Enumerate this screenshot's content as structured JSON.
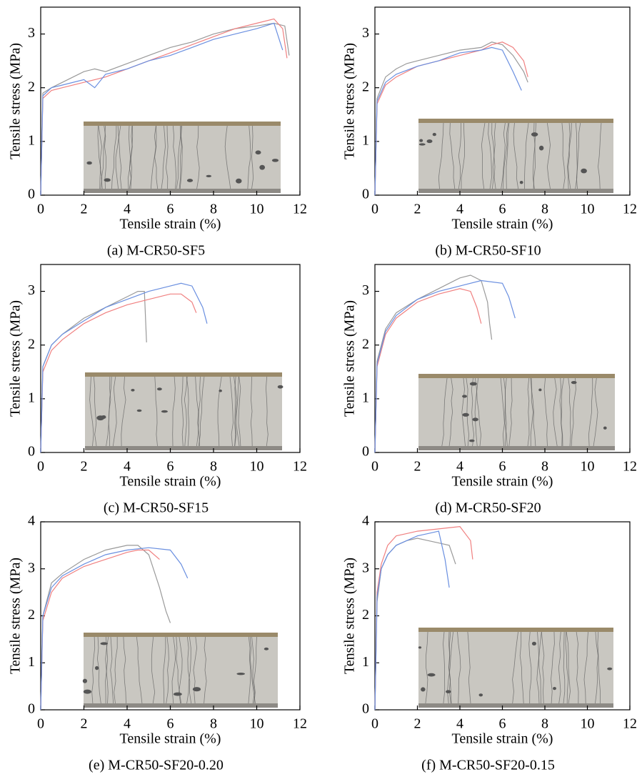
{
  "chart_data": [
    {
      "type": "line",
      "title": "(a) M-CR50-SF5",
      "x_label": "Tensile strain (%)",
      "y_label": "Tensile stress (MPa)",
      "xlim": [
        0,
        12
      ],
      "xticks": [
        0,
        2,
        4,
        6,
        8,
        10,
        12
      ],
      "ylim": [
        0,
        3.5
      ],
      "yticks": [
        0,
        1,
        2,
        3
      ],
      "series": [
        {
          "color": "#999999",
          "x": [
            0,
            0.1,
            0.5,
            1,
            1.5,
            2,
            2.5,
            3,
            4,
            5,
            6,
            7,
            8,
            9,
            10,
            10.8,
            11.3,
            11.5
          ],
          "values": [
            0,
            1.9,
            2.0,
            2.1,
            2.2,
            2.3,
            2.35,
            2.3,
            2.45,
            2.6,
            2.75,
            2.85,
            3.0,
            3.1,
            3.15,
            3.2,
            3.15,
            2.6
          ]
        },
        {
          "color": "#f08080",
          "x": [
            0,
            0.1,
            0.5,
            1,
            2,
            3,
            4,
            5,
            6,
            7,
            8,
            9,
            10,
            10.8,
            11.2,
            11.4
          ],
          "values": [
            0,
            1.8,
            1.95,
            2.0,
            2.1,
            2.2,
            2.35,
            2.5,
            2.65,
            2.8,
            2.95,
            3.1,
            3.2,
            3.28,
            3.1,
            2.55
          ]
        },
        {
          "color": "#6a8fe0",
          "x": [
            0,
            0.1,
            0.5,
            1,
            2,
            2.5,
            3,
            4,
            5,
            6,
            7,
            8,
            9,
            10,
            10.8,
            11.2
          ],
          "values": [
            0,
            1.85,
            2.0,
            2.05,
            2.15,
            2.0,
            2.25,
            2.35,
            2.5,
            2.6,
            2.75,
            2.9,
            3.0,
            3.1,
            3.2,
            2.7
          ]
        }
      ]
    },
    {
      "type": "line",
      "title": "(b) M-CR50-SF10",
      "x_label": "Tensile strain (%)",
      "y_label": "Tensile stress (MPa)",
      "xlim": [
        0,
        12
      ],
      "xticks": [
        0,
        2,
        4,
        6,
        8,
        10,
        12
      ],
      "ylim": [
        0,
        3.5
      ],
      "yticks": [
        0,
        1,
        2,
        3
      ],
      "series": [
        {
          "color": "#999999",
          "x": [
            0,
            0.1,
            0.5,
            1,
            1.5,
            2,
            3,
            4,
            5,
            5.5,
            6,
            6.5,
            7,
            7.2
          ],
          "values": [
            0,
            1.8,
            2.2,
            2.35,
            2.45,
            2.5,
            2.6,
            2.7,
            2.75,
            2.85,
            2.8,
            2.6,
            2.3,
            2.1
          ]
        },
        {
          "color": "#f08080",
          "x": [
            0,
            0.1,
            0.5,
            1,
            2,
            3,
            4,
            5,
            5.5,
            6,
            6.5,
            7,
            7.2
          ],
          "values": [
            0,
            1.7,
            2.05,
            2.2,
            2.4,
            2.5,
            2.6,
            2.7,
            2.8,
            2.85,
            2.75,
            2.5,
            2.2
          ]
        },
        {
          "color": "#6a8fe0",
          "x": [
            0,
            0.1,
            0.5,
            1,
            2,
            3,
            4,
            5,
            5.5,
            6,
            6.5,
            6.9
          ],
          "values": [
            0,
            1.75,
            2.1,
            2.25,
            2.4,
            2.5,
            2.65,
            2.7,
            2.75,
            2.7,
            2.3,
            1.95
          ]
        }
      ]
    },
    {
      "type": "line",
      "title": "(c) M-CR50-SF15",
      "x_label": "Tensile strain (%)",
      "y_label": "Tensile stress (MPa)",
      "xlim": [
        0,
        12
      ],
      "xticks": [
        0,
        2,
        4,
        6,
        8,
        10,
        12
      ],
      "ylim": [
        0,
        3.5
      ],
      "yticks": [
        0,
        1,
        2,
        3
      ],
      "series": [
        {
          "color": "#999999",
          "x": [
            0,
            0.1,
            0.5,
            1,
            2,
            3,
            4,
            4.5,
            4.8,
            4.9
          ],
          "values": [
            0,
            1.6,
            2.0,
            2.2,
            2.5,
            2.7,
            2.9,
            3.0,
            3.0,
            2.05
          ]
        },
        {
          "color": "#f08080",
          "x": [
            0,
            0.1,
            0.5,
            1,
            2,
            3,
            4,
            5,
            6,
            6.5,
            7,
            7.2
          ],
          "values": [
            0,
            1.5,
            1.9,
            2.1,
            2.4,
            2.6,
            2.75,
            2.85,
            2.95,
            2.95,
            2.8,
            2.6
          ]
        },
        {
          "color": "#6a8fe0",
          "x": [
            0,
            0.1,
            0.5,
            1,
            2,
            3,
            4,
            5,
            6,
            6.5,
            7,
            7.5,
            7.7
          ],
          "values": [
            0,
            1.6,
            2.0,
            2.2,
            2.45,
            2.7,
            2.85,
            3.0,
            3.1,
            3.15,
            3.1,
            2.7,
            2.4
          ]
        }
      ]
    },
    {
      "type": "line",
      "title": "(d) M-CR50-SF20",
      "x_label": "Tensile strain (%)",
      "y_label": "Tensile stress (MPa)",
      "xlim": [
        0,
        12
      ],
      "xticks": [
        0,
        2,
        4,
        6,
        8,
        10,
        12
      ],
      "ylim": [
        0,
        3.5
      ],
      "yticks": [
        0,
        1,
        2,
        3
      ],
      "series": [
        {
          "color": "#999999",
          "x": [
            0,
            0.1,
            0.5,
            1,
            2,
            3,
            4,
            4.5,
            5,
            5.3,
            5.4,
            5.5
          ],
          "values": [
            0,
            1.7,
            2.3,
            2.6,
            2.85,
            3.05,
            3.25,
            3.3,
            3.2,
            2.8,
            2.4,
            2.1
          ]
        },
        {
          "color": "#f08080",
          "x": [
            0,
            0.1,
            0.5,
            1,
            2,
            3,
            4,
            4.5,
            4.8,
            5.0
          ],
          "values": [
            0,
            1.6,
            2.2,
            2.5,
            2.8,
            2.95,
            3.05,
            3.0,
            2.7,
            2.4
          ]
        },
        {
          "color": "#6a8fe0",
          "x": [
            0,
            0.1,
            0.5,
            1,
            2,
            3,
            4,
            5,
            6,
            6.3,
            6.6
          ],
          "values": [
            0,
            1.65,
            2.25,
            2.55,
            2.85,
            3.0,
            3.1,
            3.2,
            3.15,
            2.9,
            2.5
          ]
        }
      ]
    },
    {
      "type": "line",
      "title": "(e) M-CR50-SF20-0.20",
      "x_label": "Tensile strain (%)",
      "y_label": "Tensile stress (MPa)",
      "xlim": [
        0,
        12
      ],
      "xticks": [
        0,
        2,
        4,
        6,
        8,
        10,
        12
      ],
      "ylim": [
        0,
        4
      ],
      "yticks": [
        0,
        1,
        2,
        3,
        4
      ],
      "series": [
        {
          "color": "#999999",
          "x": [
            0,
            0.1,
            0.5,
            1,
            2,
            3,
            4,
            4.5,
            5,
            5.5,
            5.8,
            6.0
          ],
          "values": [
            0,
            2.0,
            2.7,
            2.9,
            3.2,
            3.4,
            3.5,
            3.5,
            3.3,
            2.6,
            2.1,
            1.85
          ]
        },
        {
          "color": "#f08080",
          "x": [
            0,
            0.1,
            0.5,
            1,
            2,
            3,
            4,
            4.5,
            5,
            5.5
          ],
          "values": [
            0,
            1.9,
            2.5,
            2.8,
            3.05,
            3.2,
            3.35,
            3.4,
            3.4,
            3.2
          ]
        },
        {
          "color": "#6a8fe0",
          "x": [
            0,
            0.1,
            0.5,
            1,
            2,
            3,
            4,
            5,
            6,
            6.5,
            6.8
          ],
          "values": [
            0,
            2.0,
            2.6,
            2.85,
            3.1,
            3.3,
            3.4,
            3.45,
            3.4,
            3.1,
            2.8
          ]
        }
      ]
    },
    {
      "type": "line",
      "title": "(f) M-CR50-SF20-0.15",
      "x_label": "Tensile strain (%)",
      "y_label": "Tensile stress (MPa)",
      "xlim": [
        0,
        12
      ],
      "xticks": [
        0,
        2,
        4,
        6,
        8,
        10,
        12
      ],
      "ylim": [
        0,
        4
      ],
      "yticks": [
        0,
        1,
        2,
        3,
        4
      ],
      "series": [
        {
          "color": "#999999",
          "x": [
            0,
            0.1,
            0.3,
            0.6,
            1,
            1.5,
            2,
            2.5,
            3,
            3.5,
            3.8
          ],
          "values": [
            0,
            2.3,
            3.0,
            3.3,
            3.5,
            3.6,
            3.65,
            3.6,
            3.55,
            3.5,
            3.1
          ]
        },
        {
          "color": "#f08080",
          "x": [
            0,
            0.1,
            0.3,
            0.6,
            1,
            1.5,
            2,
            3,
            4,
            4.5,
            4.6
          ],
          "values": [
            0,
            2.5,
            3.1,
            3.5,
            3.7,
            3.75,
            3.8,
            3.85,
            3.9,
            3.6,
            3.2
          ]
        },
        {
          "color": "#6a8fe0",
          "x": [
            0,
            0.1,
            0.3,
            0.6,
            1,
            1.5,
            2,
            2.5,
            3,
            3.3,
            3.5
          ],
          "values": [
            0,
            2.4,
            3.0,
            3.3,
            3.5,
            3.6,
            3.7,
            3.75,
            3.8,
            3.2,
            2.6
          ]
        }
      ]
    }
  ]
}
